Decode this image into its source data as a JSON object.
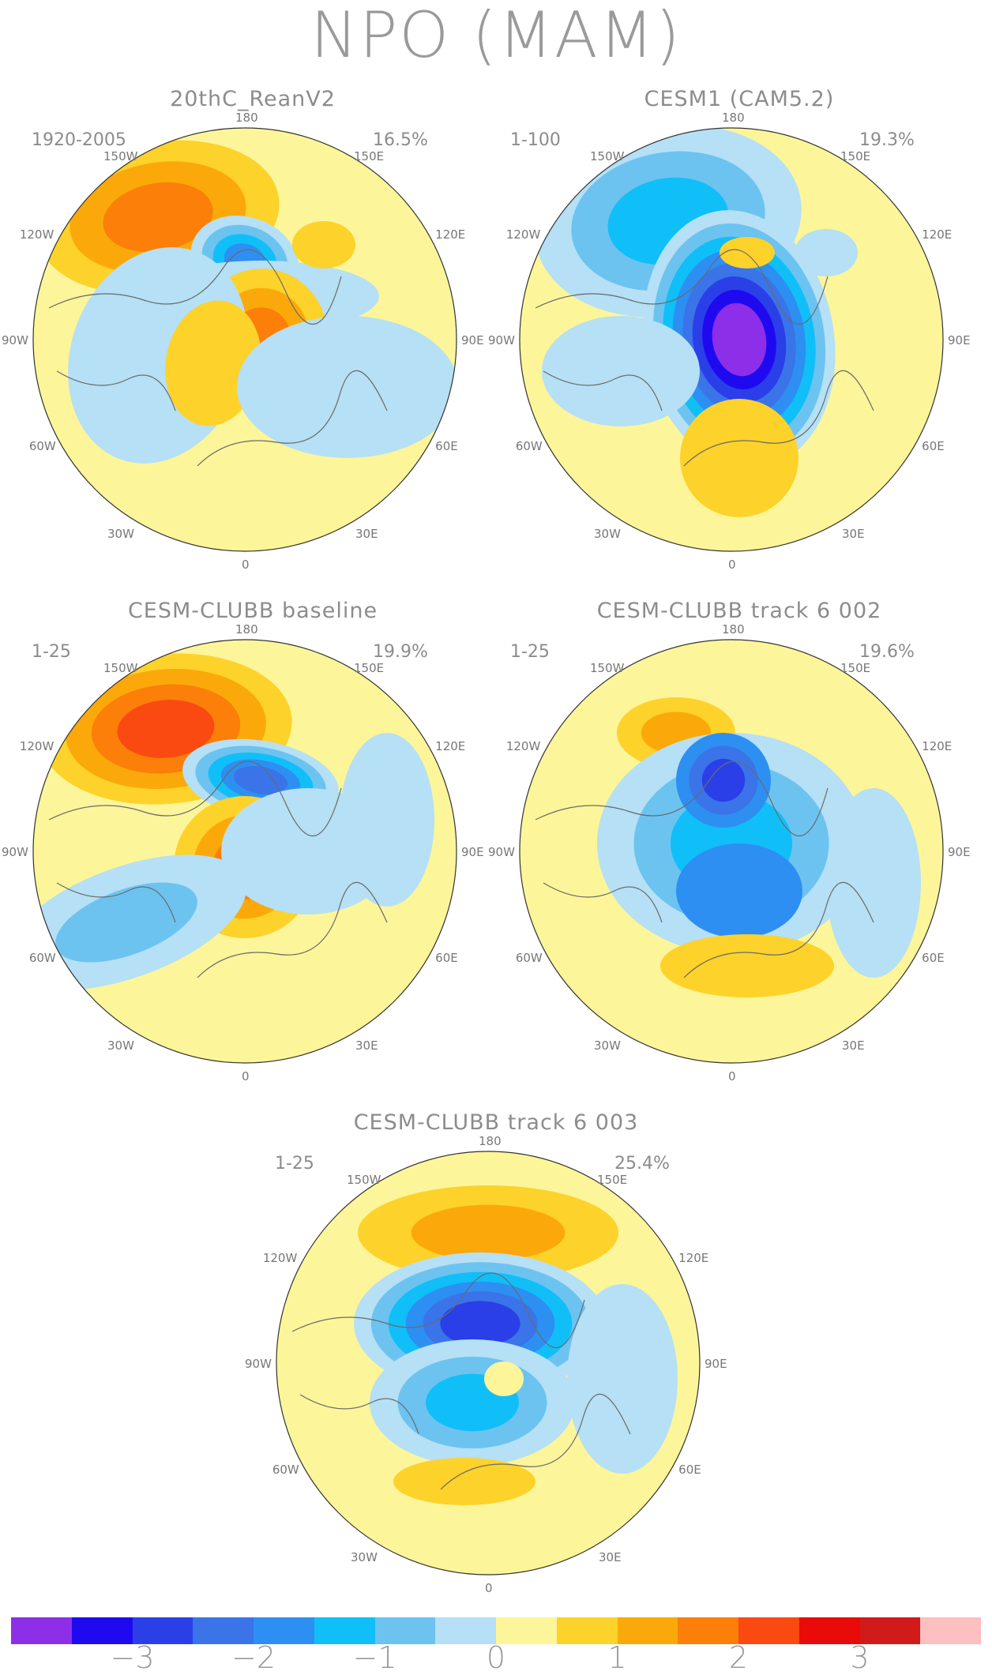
{
  "title": "NPO (MAM)",
  "axis_labels": {
    "top": "180",
    "bottom": "0",
    "left": "90W",
    "right": "90E",
    "upper_left": "150W",
    "upper_right": "150E",
    "mid_left": "120W",
    "mid_right": "120E",
    "lower_left": "60W",
    "lower_right": "60E",
    "bottom_left": "30W",
    "bottom_right": "30E"
  },
  "panels": [
    {
      "title": "20thC_ReanV2",
      "period": "1920-2005",
      "percent": "16.5%"
    },
    {
      "title": "CESM1 (CAM5.2)",
      "period": "1-100",
      "percent": "19.3%"
    },
    {
      "title": "CESM-CLUBB baseline",
      "period": "1-25",
      "percent": "19.9%"
    },
    {
      "title": "CESM-CLUBB track 6 002",
      "period": "1-25",
      "percent": "19.6%"
    },
    {
      "title": "CESM-CLUBB track 6 003",
      "period": "1-25",
      "percent": "25.4%"
    }
  ],
  "colorbar": {
    "colors": [
      "#8d2ee8",
      "#1f0af0",
      "#2a3fe8",
      "#3a74e8",
      "#2d8ff2",
      "#10bff8",
      "#6cc3f0",
      "#b5e0f5",
      "#fdf59a",
      "#fdd22a",
      "#fba90a",
      "#fb7f09",
      "#fa4a12",
      "#e90a0a",
      "#d11a1a",
      "#fdbfbf"
    ],
    "tick_labels": [
      "−3",
      "−2",
      "−1",
      "0",
      "1",
      "2",
      "3"
    ],
    "tick_values": [
      -3,
      -2,
      -1,
      0,
      1,
      2,
      3
    ]
  }
}
